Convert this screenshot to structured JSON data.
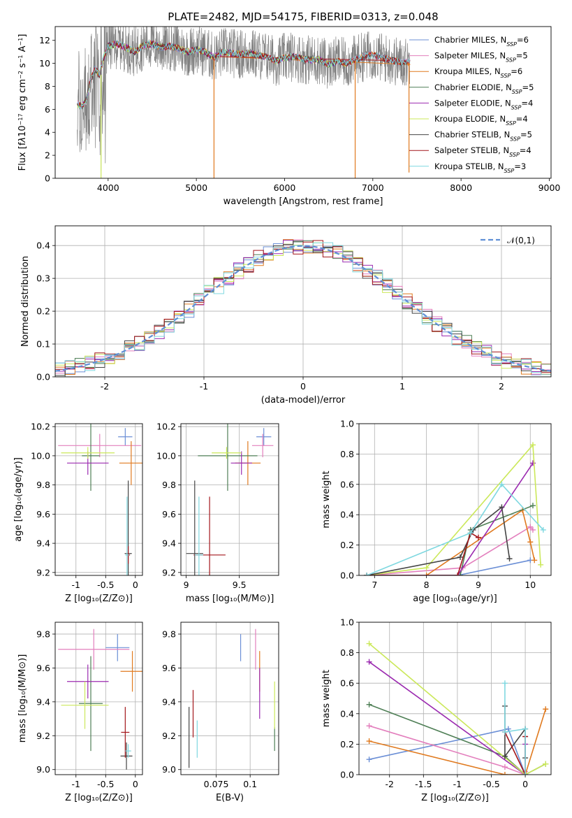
{
  "figure": {
    "title": "PLATE=2482, MJD=54175, FIBERID=0313, z=0.048"
  },
  "colors": {
    "Chabrier MILES": "#6b8fd6",
    "Salpeter MILES": "#e37fbd",
    "Kroupa MILES": "#e07a1f",
    "Chabrier ELODIE": "#4f7f56",
    "Salpeter ELODIE": "#9b2ab0",
    "Kroupa ELODIE": "#cbe85a",
    "Chabrier STELIB": "#444444",
    "Salpeter STELIB": "#a3161b",
    "Kroupa STELIB": "#7fd8e0",
    "data": "#808080",
    "normal": "#5f8fd6"
  },
  "chart_data": [
    {
      "id": "spectrum",
      "type": "line",
      "xlabel": "wavelength [Angstrom, rest frame]",
      "ylabel_html": "Flux [f<tspan font-style='italic'>λ</tspan>10<tspan baseline-shift='super' font-size='8'>−17</tspan> erg cm<tspan baseline-shift='super' font-size='8'>−2</tspan> s<tspan baseline-shift='super' font-size='8'>−1</tspan> A<tspan baseline-shift='super' font-size='8'>−1</tspan>]",
      "xlim": [
        3400,
        9020
      ],
      "ylim": [
        0,
        13.2
      ],
      "xticks": [
        4000,
        5000,
        6000,
        7000,
        8000,
        9000
      ],
      "yticks": [
        0,
        2,
        4,
        6,
        8,
        10,
        12
      ],
      "grid": false,
      "legend_position": "right",
      "data_range": [
        3650,
        7420
      ],
      "model_range": [
        3650,
        7420
      ],
      "model_points": [
        [
          3650,
          6.5
        ],
        [
          3700,
          6.2
        ],
        [
          3750,
          6.8
        ],
        [
          3800,
          8.5
        ],
        [
          3850,
          9.5
        ],
        [
          3900,
          9.0
        ],
        [
          3950,
          10.5
        ],
        [
          4000,
          11.5
        ],
        [
          4100,
          11.7
        ],
        [
          4200,
          11.4
        ],
        [
          4300,
          11.0
        ],
        [
          4400,
          11.6
        ],
        [
          4500,
          11.7
        ],
        [
          4600,
          11.4
        ],
        [
          4700,
          11.5
        ],
        [
          4800,
          11.3
        ],
        [
          4900,
          11.0
        ],
        [
          5000,
          11.2
        ],
        [
          5100,
          11.0
        ],
        [
          5200,
          10.5
        ],
        [
          5300,
          11.0
        ],
        [
          5400,
          10.9
        ],
        [
          5500,
          10.8
        ],
        [
          5600,
          10.9
        ],
        [
          5700,
          10.7
        ],
        [
          5800,
          10.6
        ],
        [
          5900,
          10.2
        ],
        [
          6000,
          10.5
        ],
        [
          6100,
          10.6
        ],
        [
          6200,
          10.4
        ],
        [
          6300,
          10.3
        ],
        [
          6400,
          10.3
        ],
        [
          6500,
          9.9
        ],
        [
          6600,
          10.2
        ],
        [
          6700,
          10.0
        ],
        [
          6800,
          10.3
        ],
        [
          6900,
          10.6
        ],
        [
          7000,
          10.8
        ],
        [
          7100,
          10.5
        ],
        [
          7200,
          10.3
        ],
        [
          7300,
          10.1
        ],
        [
          7420,
          10.1
        ]
      ],
      "model_ends": {
        "Chabrier MILES": 7420,
        "Salpeter MILES": 7420,
        "Kroupa MILES": 7420,
        "Chabrier ELODIE": 6800,
        "Salpeter ELODIE": 6800,
        "Kroupa ELODIE": 6800,
        "Chabrier STELIB": 8800,
        "Salpeter STELIB": 8800,
        "Kroupa STELIB": 8800
      },
      "legend": [
        {
          "label": "Chabrier MILES, N",
          "sub": "SSP",
          "tail": "=6",
          "key": "Chabrier MILES"
        },
        {
          "label": "Salpeter MILES, N",
          "sub": "SSP",
          "tail": "=5",
          "key": "Salpeter MILES"
        },
        {
          "label": "Kroupa MILES, N",
          "sub": "SSP",
          "tail": "=6",
          "key": "Kroupa MILES"
        },
        {
          "label": "Chabrier ELODIE, N",
          "sub": "SSP",
          "tail": "=5",
          "key": "Chabrier ELODIE"
        },
        {
          "label": "Salpeter ELODIE, N",
          "sub": "SSP",
          "tail": "=4",
          "key": "Salpeter ELODIE"
        },
        {
          "label": "Kroupa ELODIE, N",
          "sub": "SSP",
          "tail": "=4",
          "key": "Kroupa ELODIE"
        },
        {
          "label": "Chabrier STELIB, N",
          "sub": "SSP",
          "tail": "=5",
          "key": "Chabrier STELIB"
        },
        {
          "label": "Salpeter STELIB, N",
          "sub": "SSP",
          "tail": "=4",
          "key": "Salpeter STELIB"
        },
        {
          "label": "Kroupa STELIB, N",
          "sub": "SSP",
          "tail": "=3",
          "key": "Kroupa STELIB"
        }
      ]
    },
    {
      "id": "residuals",
      "type": "line",
      "xlabel": "(data-model)/error",
      "ylabel": "Normed distribution",
      "xlim": [
        -2.5,
        2.5
      ],
      "ylim": [
        0,
        0.46
      ],
      "xticks": [
        -2,
        -1,
        0,
        1,
        2
      ],
      "yticks": [
        0.0,
        0.1,
        0.2,
        0.3,
        0.4
      ],
      "grid": true,
      "legend_position": "top-right",
      "legend_label": "𝒩(0,1)",
      "bin_width": 0.1
    },
    {
      "id": "age_Z",
      "type": "scatter",
      "xlabel": "Z [log₁₀(Z/Z⊙)]",
      "ylabel": "age  [log₁₀(age/yr)]",
      "xlim": [
        -1.35,
        0.12
      ],
      "ylim": [
        9.18,
        10.22
      ],
      "xticks": [
        -1.0,
        -0.5,
        0.0
      ],
      "yticks": [
        9.2,
        9.4,
        9.6,
        9.8,
        10.0,
        10.2
      ],
      "grid": true,
      "points": [
        {
          "key": "Chabrier MILES",
          "x": -0.17,
          "y": 10.13,
          "xerr": 0.12,
          "yerr": 0.06
        },
        {
          "key": "Salpeter MILES",
          "x": -0.6,
          "y": 10.07,
          "xerr": 0.7,
          "yerr": 0.08
        },
        {
          "key": "Kroupa MILES",
          "x": -0.07,
          "y": 9.95,
          "xerr": 0.2,
          "yerr": 0.15
        },
        {
          "key": "Chabrier ELODIE",
          "x": -0.75,
          "y": 10.0,
          "xerr": 0.15,
          "yerr": 0.24
        },
        {
          "key": "Salpeter ELODIE",
          "x": -0.8,
          "y": 9.95,
          "xerr": 0.35,
          "yerr": 0.08
        },
        {
          "key": "Kroupa ELODIE",
          "x": -0.8,
          "y": 10.02,
          "xerr": 0.45,
          "yerr": 0.04
        },
        {
          "key": "Chabrier STELIB",
          "x": -0.12,
          "y": 9.33,
          "xerr": 0.06,
          "yerr": 0.5
        },
        {
          "key": "Salpeter STELIB",
          "x": -0.12,
          "y": 9.32,
          "xerr": 0.03,
          "yerr": 0.06
        },
        {
          "key": "Kroupa STELIB",
          "x": -0.14,
          "y": 9.32,
          "xerr": 0.03,
          "yerr": 0.4
        }
      ]
    },
    {
      "id": "age_mass",
      "type": "scatter",
      "xlabel": "mass [log₁₀(M/M⊙)]",
      "ylabel": "",
      "xlim": [
        8.95,
        9.87
      ],
      "ylim": [
        9.18,
        10.22
      ],
      "xticks": [
        9.0,
        9.5
      ],
      "yticks": [
        9.2,
        9.4,
        9.6,
        9.8,
        10.0,
        10.2
      ],
      "grid": true,
      "points": [
        {
          "key": "Chabrier MILES",
          "x": 9.73,
          "y": 10.13,
          "xerr": 0.07,
          "yerr": 0.06
        },
        {
          "key": "Salpeter MILES",
          "x": 9.72,
          "y": 10.07,
          "xerr": 0.1,
          "yerr": 0.08
        },
        {
          "key": "Kroupa MILES",
          "x": 9.58,
          "y": 9.95,
          "xerr": 0.12,
          "yerr": 0.15
        },
        {
          "key": "Chabrier ELODIE",
          "x": 9.39,
          "y": 10.0,
          "xerr": 0.28,
          "yerr": 0.24
        },
        {
          "key": "Salpeter ELODIE",
          "x": 9.52,
          "y": 9.95,
          "xerr": 0.1,
          "yerr": 0.08
        },
        {
          "key": "Kroupa ELODIE",
          "x": 9.38,
          "y": 10.02,
          "xerr": 0.14,
          "yerr": 0.04
        },
        {
          "key": "Chabrier STELIB",
          "x": 9.08,
          "y": 9.33,
          "xerr": 0.08,
          "yerr": 0.5
        },
        {
          "key": "Salpeter STELIB",
          "x": 9.22,
          "y": 9.32,
          "xerr": 0.15,
          "yerr": 0.4
        },
        {
          "key": "Kroupa STELIB",
          "x": 9.12,
          "y": 9.32,
          "xerr": 0.04,
          "yerr": 0.4
        }
      ]
    },
    {
      "id": "weight_age",
      "type": "line",
      "xlabel": "age  [log₁₀(age/yr)]",
      "ylabel": "mass weight",
      "xlim": [
        6.7,
        10.4
      ],
      "ylim": [
        0,
        1.0
      ],
      "xticks": [
        7,
        8,
        9,
        10
      ],
      "yticks": [
        0.0,
        0.2,
        0.4,
        0.6,
        0.8,
        1.0
      ],
      "grid": true,
      "series": [
        {
          "key": "Chabrier MILES",
          "x": [
            6.85,
            8.6,
            10.0
          ],
          "y": [
            0.0,
            0.0,
            0.1
          ]
        },
        {
          "key": "Salpeter MILES",
          "x": [
            6.85,
            8.7,
            10.0,
            10.05
          ],
          "y": [
            0.0,
            0.05,
            0.32,
            0.3
          ]
        },
        {
          "key": "Kroupa MILES",
          "x": [
            6.85,
            8.0,
            9.85,
            10.0,
            10.08
          ],
          "y": [
            0.0,
            0.0,
            0.43,
            0.22,
            0.1
          ]
        },
        {
          "key": "Chabrier ELODIE",
          "x": [
            6.85,
            8.65,
            8.85,
            10.05
          ],
          "y": [
            0.0,
            0.0,
            0.3,
            0.46
          ]
        },
        {
          "key": "Salpeter ELODIE",
          "x": [
            6.85,
            8.6,
            10.05
          ],
          "y": [
            0.0,
            0.0,
            0.74
          ]
        },
        {
          "key": "Kroupa ELODIE",
          "x": [
            6.85,
            8.0,
            10.05,
            10.2
          ],
          "y": [
            0.0,
            0.05,
            0.86,
            0.07
          ]
        },
        {
          "key": "Chabrier STELIB",
          "x": [
            6.85,
            8.65,
            8.9,
            9.45,
            9.6
          ],
          "y": [
            0.0,
            0.12,
            0.3,
            0.45,
            0.11
          ]
        },
        {
          "key": "Salpeter STELIB",
          "x": [
            6.85,
            8.6,
            8.85,
            9.0
          ],
          "y": [
            0.0,
            0.0,
            0.28,
            0.25
          ]
        },
        {
          "key": "Kroupa STELIB",
          "x": [
            6.85,
            8.85,
            9.45,
            10.25
          ],
          "y": [
            0.0,
            0.28,
            0.6,
            0.3
          ]
        }
      ]
    },
    {
      "id": "mass_Z",
      "type": "scatter",
      "xlabel": "Z [log₁₀(Z/Z⊙)]",
      "ylabel": "mass [log₁₀(M/M⊙)]",
      "xlim": [
        -1.35,
        0.12
      ],
      "ylim": [
        8.97,
        9.87
      ],
      "xticks": [
        -1.0,
        -0.5,
        0.0
      ],
      "yticks": [
        9.0,
        9.2,
        9.4,
        9.6,
        9.8
      ],
      "grid": true,
      "points": [
        {
          "key": "Chabrier MILES",
          "x": -0.3,
          "y": 9.72,
          "xerr": 0.2,
          "yerr": 0.08
        },
        {
          "key": "Salpeter MILES",
          "x": -0.7,
          "y": 9.71,
          "xerr": 0.6,
          "yerr": 0.12
        },
        {
          "key": "Kroupa MILES",
          "x": -0.05,
          "y": 9.58,
          "xerr": 0.2,
          "yerr": 0.12
        },
        {
          "key": "Chabrier ELODIE",
          "x": -0.75,
          "y": 9.39,
          "xerr": 0.2,
          "yerr": 0.28
        },
        {
          "key": "Salpeter ELODIE",
          "x": -0.8,
          "y": 9.52,
          "xerr": 0.35,
          "yerr": 0.1
        },
        {
          "key": "Kroupa ELODIE",
          "x": -0.85,
          "y": 9.38,
          "xerr": 0.4,
          "yerr": 0.14
        },
        {
          "key": "Chabrier STELIB",
          "x": -0.15,
          "y": 9.08,
          "xerr": 0.1,
          "yerr": 0.08
        },
        {
          "key": "Salpeter STELIB",
          "x": -0.17,
          "y": 9.22,
          "xerr": 0.07,
          "yerr": 0.15
        },
        {
          "key": "Kroupa STELIB",
          "x": -0.12,
          "y": 9.11,
          "xerr": 0.05,
          "yerr": 0.04
        }
      ]
    },
    {
      "id": "mass_ebv",
      "type": "scatter",
      "xlabel": "E(B-V)",
      "ylabel": "",
      "xlim": [
        0.049,
        0.121
      ],
      "ylim": [
        8.97,
        9.87
      ],
      "xticks": [
        0.075,
        0.1
      ],
      "yticks": [
        9.0,
        9.2,
        9.4,
        9.6,
        9.8
      ],
      "grid": true,
      "points": [
        {
          "key": "Chabrier MILES",
          "x": 0.093,
          "y": 9.72,
          "xerr": 0,
          "yerr": 0.08
        },
        {
          "key": "Salpeter MILES",
          "x": 0.104,
          "y": 9.71,
          "xerr": 0,
          "yerr": 0.12
        },
        {
          "key": "Kroupa MILES",
          "x": 0.107,
          "y": 9.58,
          "xerr": 0,
          "yerr": 0.12
        },
        {
          "key": "Chabrier ELODIE",
          "x": 0.118,
          "y": 9.18,
          "xerr": 0,
          "yerr": 0.07
        },
        {
          "key": "Salpeter ELODIE",
          "x": 0.107,
          "y": 9.45,
          "xerr": 0,
          "yerr": 0.15
        },
        {
          "key": "Kroupa ELODIE",
          "x": 0.118,
          "y": 9.38,
          "xerr": 0,
          "yerr": 0.14
        },
        {
          "key": "Chabrier STELIB",
          "x": 0.055,
          "y": 9.19,
          "xerr": 0,
          "yerr": 0.18
        },
        {
          "key": "Salpeter STELIB",
          "x": 0.058,
          "y": 9.33,
          "xerr": 0,
          "yerr": 0.14
        },
        {
          "key": "Kroupa STELIB",
          "x": 0.061,
          "y": 9.18,
          "xerr": 0,
          "yerr": 0.11
        }
      ]
    },
    {
      "id": "weight_Z",
      "type": "line",
      "xlabel": "Z [log₁₀(Z/Z⊙)]",
      "ylabel": "mass weight",
      "xlim": [
        -2.45,
        0.38
      ],
      "ylim": [
        0,
        1.0
      ],
      "xticks": [
        -2.0,
        -1.5,
        -1.0,
        -0.5,
        0.0
      ],
      "yticks": [
        0.0,
        0.2,
        0.4,
        0.6,
        0.8,
        1.0
      ],
      "grid": true,
      "series": [
        {
          "key": "Chabrier MILES",
          "x": [
            -2.3,
            -0.25,
            0.0
          ],
          "y": [
            0.1,
            0.3,
            0.0
          ]
        },
        {
          "key": "Salpeter MILES",
          "x": [
            -2.3,
            -0.3,
            0.0,
            0.0
          ],
          "y": [
            0.32,
            0.05,
            0.0,
            0.02
          ]
        },
        {
          "key": "Kroupa MILES",
          "x": [
            -2.3,
            -0.3,
            0.0,
            0.3
          ],
          "y": [
            0.22,
            0.0,
            0.0,
            0.43
          ]
        },
        {
          "key": "Chabrier ELODIE",
          "x": [
            -2.3,
            -0.3,
            0.0,
            0.3
          ],
          "y": [
            0.46,
            0.12,
            0.0,
            0.07
          ]
        },
        {
          "key": "Salpeter ELODIE",
          "x": [
            -2.3,
            0.0,
            0.0
          ],
          "y": [
            0.74,
            0.0,
            0.2
          ]
        },
        {
          "key": "Kroupa ELODIE",
          "x": [
            -2.3,
            0.0,
            0.3
          ],
          "y": [
            0.86,
            0.0,
            0.07
          ]
        },
        {
          "key": "Chabrier STELIB",
          "x": [
            -0.3,
            -0.3,
            0.0,
            0.0
          ],
          "y": [
            0.45,
            0.12,
            0.3,
            0.11
          ]
        },
        {
          "key": "Salpeter STELIB",
          "x": [
            -0.3,
            0.0,
            0.0
          ],
          "y": [
            0.28,
            0.0,
            0.25
          ]
        },
        {
          "key": "Kroupa STELIB",
          "x": [
            -0.3,
            -0.3,
            0.0,
            0.0
          ],
          "y": [
            0.6,
            0.28,
            0.3,
            0.0
          ]
        }
      ]
    }
  ]
}
